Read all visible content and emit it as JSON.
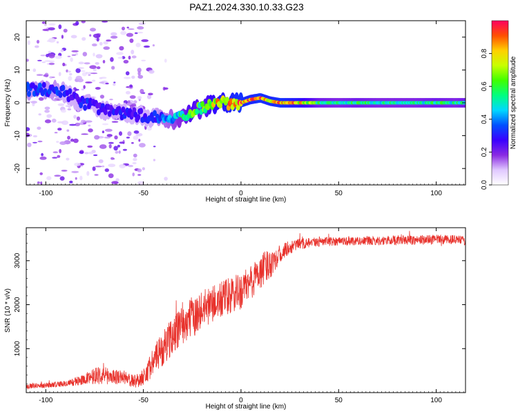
{
  "title": "PAZ1.2024.330.10.33.G23",
  "chart_data": [
    {
      "type": "heatmap",
      "name": "spectrogram",
      "xlabel": "Height of straight line (km)",
      "ylabel": "Frequency (Hz)",
      "xlim": [
        -110,
        115
      ],
      "ylim": [
        -25,
        25
      ],
      "x_ticks": [
        -100,
        -50,
        0,
        50,
        100
      ],
      "y_ticks": [
        -20,
        -10,
        0,
        10,
        20
      ],
      "colorbar": {
        "label": "Normalized spectral amplitude",
        "range": [
          0.0,
          1.0
        ],
        "ticks": [
          0.0,
          0.2,
          0.4,
          0.6,
          0.8
        ],
        "colors": [
          "#ffffff",
          "#e0c8ff",
          "#8a2be2",
          "#3a00ff",
          "#0050ff",
          "#00d8ff",
          "#00ff80",
          "#40ff00",
          "#c8ff00",
          "#ffd000",
          "#ff5000",
          "#ff0060"
        ]
      },
      "ridge": {
        "x": [
          -95,
          -90,
          -85,
          -80,
          -75,
          -70,
          -65,
          -60,
          -55,
          -50,
          -45,
          -40,
          -35,
          -30,
          -25,
          -20,
          -15,
          -10,
          -5,
          0,
          5,
          10,
          15,
          20,
          30,
          40,
          50,
          60,
          70,
          80,
          90,
          100,
          110,
          115
        ],
        "y": [
          4,
          3,
          1,
          0,
          -1,
          -2,
          -3,
          -3,
          -3.5,
          -4,
          -4.5,
          -5,
          -5,
          -4.5,
          -3,
          -1.5,
          -0.5,
          0,
          0,
          0,
          1,
          1.5,
          0.5,
          0,
          0,
          0,
          0,
          0,
          0,
          0,
          0,
          0,
          0,
          0
        ],
        "amplitude": [
          0.35,
          0.3,
          0.3,
          0.32,
          0.3,
          0.3,
          0.32,
          0.3,
          0.28,
          0.3,
          0.3,
          0.4,
          0.45,
          0.55,
          0.75,
          0.6,
          0.8,
          0.85,
          0.9,
          0.95,
          0.9,
          0.95,
          0.9,
          0.95,
          0.85,
          0.6,
          0.55,
          0.6,
          0.55,
          0.55,
          0.55,
          0.6,
          0.55,
          0.6
        ]
      }
    },
    {
      "type": "line",
      "name": "snr",
      "xlabel": "Height of straight line (km)",
      "ylabel": "SNR (10 * v/v)",
      "xlim": [
        -110,
        115
      ],
      "ylim": [
        0,
        3750
      ],
      "x_ticks": [
        -100,
        -50,
        0,
        50,
        100
      ],
      "y_ticks": [
        1000,
        2000,
        3000
      ],
      "color": "#e8322c",
      "envelope": {
        "x": [
          -110,
          -100,
          -90,
          -80,
          -75,
          -70,
          -60,
          -55,
          -50,
          -45,
          -40,
          -35,
          -30,
          -25,
          -20,
          -15,
          -10,
          -5,
          0,
          5,
          10,
          15,
          20,
          25,
          30,
          40,
          50,
          60,
          70,
          80,
          90,
          100,
          110,
          115
        ],
        "y": [
          150,
          170,
          200,
          300,
          400,
          380,
          350,
          250,
          350,
          700,
          1000,
          1300,
          1550,
          1700,
          1900,
          2000,
          2100,
          2200,
          2300,
          2500,
          2750,
          2950,
          3150,
          3300,
          3380,
          3420,
          3450,
          3450,
          3450,
          3470,
          3470,
          3480,
          3480,
          3450
        ],
        "noise": [
          60,
          60,
          70,
          120,
          200,
          200,
          160,
          150,
          200,
          320,
          400,
          420,
          450,
          480,
          420,
          420,
          440,
          440,
          420,
          420,
          400,
          350,
          200,
          160,
          130,
          110,
          100,
          100,
          100,
          110,
          110,
          110,
          100,
          100
        ]
      }
    }
  ]
}
